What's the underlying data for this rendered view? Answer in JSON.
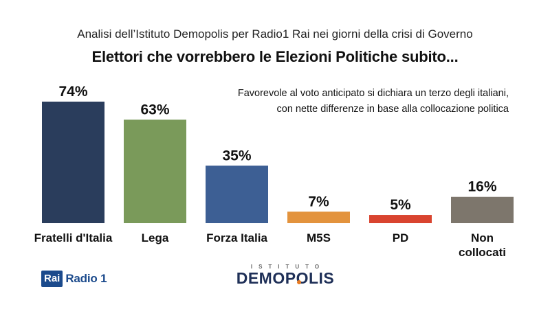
{
  "header": {
    "subtitle": "Analisi dell’Istituto Demopolis per Radio1 Rai nei giorni della crisi di Governo",
    "title": "Elettori che vorrebbero le Elezioni Politiche subito..."
  },
  "note": {
    "line1": "Favorevole al voto anticipato si dichiara un terzo degli italiani,",
    "line2": "con nette differenze in base alla collocazione politica"
  },
  "chart_data": {
    "type": "bar",
    "categories": [
      "Fratelli d'Italia",
      "Lega",
      "Forza Italia",
      "M5S",
      "PD",
      "Non collocati"
    ],
    "category_lines": [
      [
        "Fratelli d'Italia"
      ],
      [
        "Lega"
      ],
      [
        "Forza Italia"
      ],
      [
        "M5S"
      ],
      [
        "PD"
      ],
      [
        "Non",
        "collocati"
      ]
    ],
    "values": [
      74,
      63,
      35,
      7,
      5,
      16
    ],
    "value_labels": [
      "74%",
      "63%",
      "35%",
      "7%",
      "5%",
      "16%"
    ],
    "colors": [
      "#2a3d5c",
      "#7a9a5a",
      "#3d5f94",
      "#e3933d",
      "#d9442f",
      "#7d766c"
    ],
    "title": "Elettori che vorrebbero le Elezioni Politiche subito...",
    "xlabel": "",
    "ylabel": "",
    "ylim": [
      0,
      74
    ],
    "grid": false,
    "legend": "none"
  },
  "logos": {
    "rai": "Rai",
    "radio": "Radio 1",
    "demopolis_top": "ISTITUTO",
    "demopolis_main": "DEMOPOLIS"
  },
  "colors": {
    "rai_blue": "#1b4a8c",
    "demopolis_navy": "#1e2f57",
    "demopolis_orange": "#e87a20"
  }
}
